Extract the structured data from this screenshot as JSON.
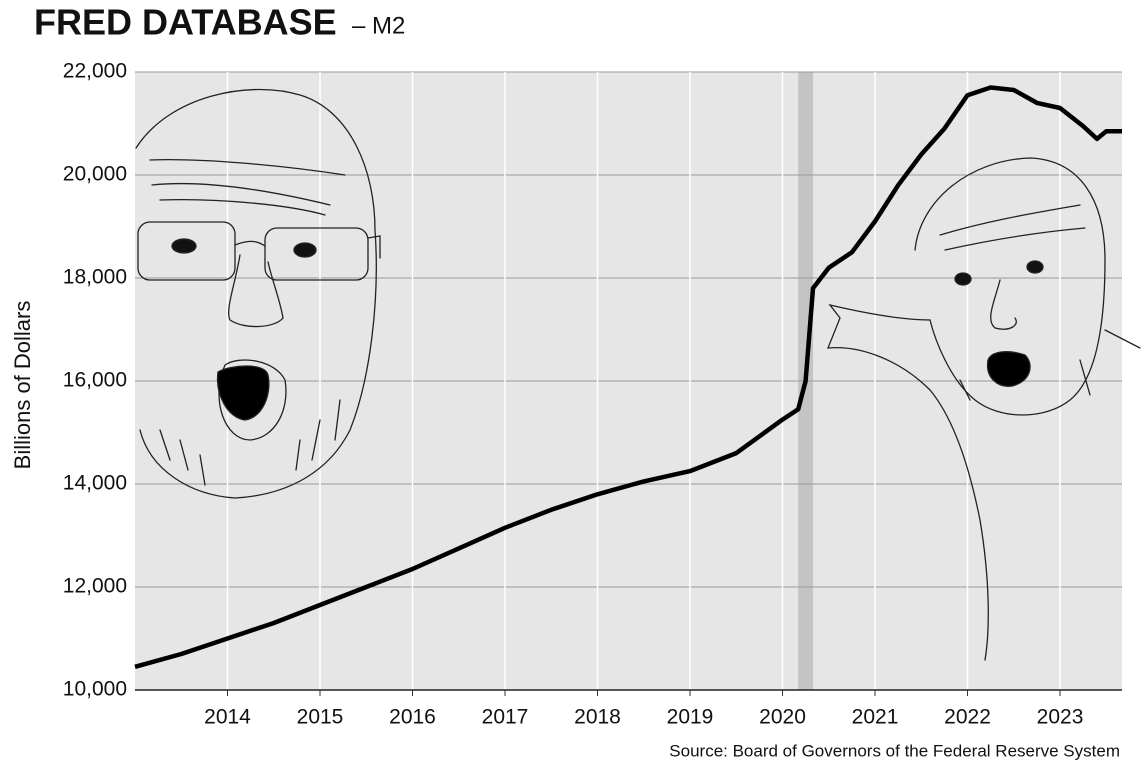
{
  "chart_data": {
    "type": "line",
    "title": "FRED DATABASE",
    "subtitle": "– M2",
    "y_label": "Billions of Dollars",
    "source": "Source: Board of Governors of the Federal Reserve System",
    "x": [
      2013.0,
      2013.5,
      2014.0,
      2014.5,
      2015.0,
      2015.5,
      2016.0,
      2016.5,
      2017.0,
      2017.5,
      2018.0,
      2018.5,
      2019.0,
      2019.5,
      2020.0,
      2020.17,
      2020.25,
      2020.33,
      2020.5,
      2020.75,
      2021.0,
      2021.25,
      2021.5,
      2021.75,
      2022.0,
      2022.25,
      2022.5,
      2022.75,
      2023.0,
      2023.25,
      2023.4,
      2023.5,
      2023.67
    ],
    "values": [
      10450,
      10700,
      11000,
      11300,
      11650,
      12000,
      12350,
      12750,
      13150,
      13500,
      13800,
      14050,
      14250,
      14600,
      15250,
      15450,
      16000,
      17800,
      18200,
      18500,
      19100,
      19800,
      20400,
      20900,
      21550,
      21700,
      21650,
      21400,
      21300,
      20950,
      20700,
      20850,
      20850
    ],
    "color": "#000000",
    "recession": [
      2020.17,
      2020.33
    ],
    "recession_color": "#c4c4c4",
    "xlim": [
      2013.0,
      2023.67
    ],
    "xticks": [
      2014,
      2015,
      2016,
      2017,
      2018,
      2019,
      2020,
      2021,
      2022,
      2023
    ],
    "ylim": [
      10000,
      22000
    ],
    "yticks": [
      {
        "value": 10000,
        "label": "10,000"
      },
      {
        "value": 12000,
        "label": "12,000"
      },
      {
        "value": 14000,
        "label": "14,000"
      },
      {
        "value": 16000,
        "label": "16,000"
      },
      {
        "value": 18000,
        "label": "18,000"
      },
      {
        "value": 20000,
        "label": "20,000"
      },
      {
        "value": 22000,
        "label": "22,000"
      }
    ],
    "grid": true
  }
}
